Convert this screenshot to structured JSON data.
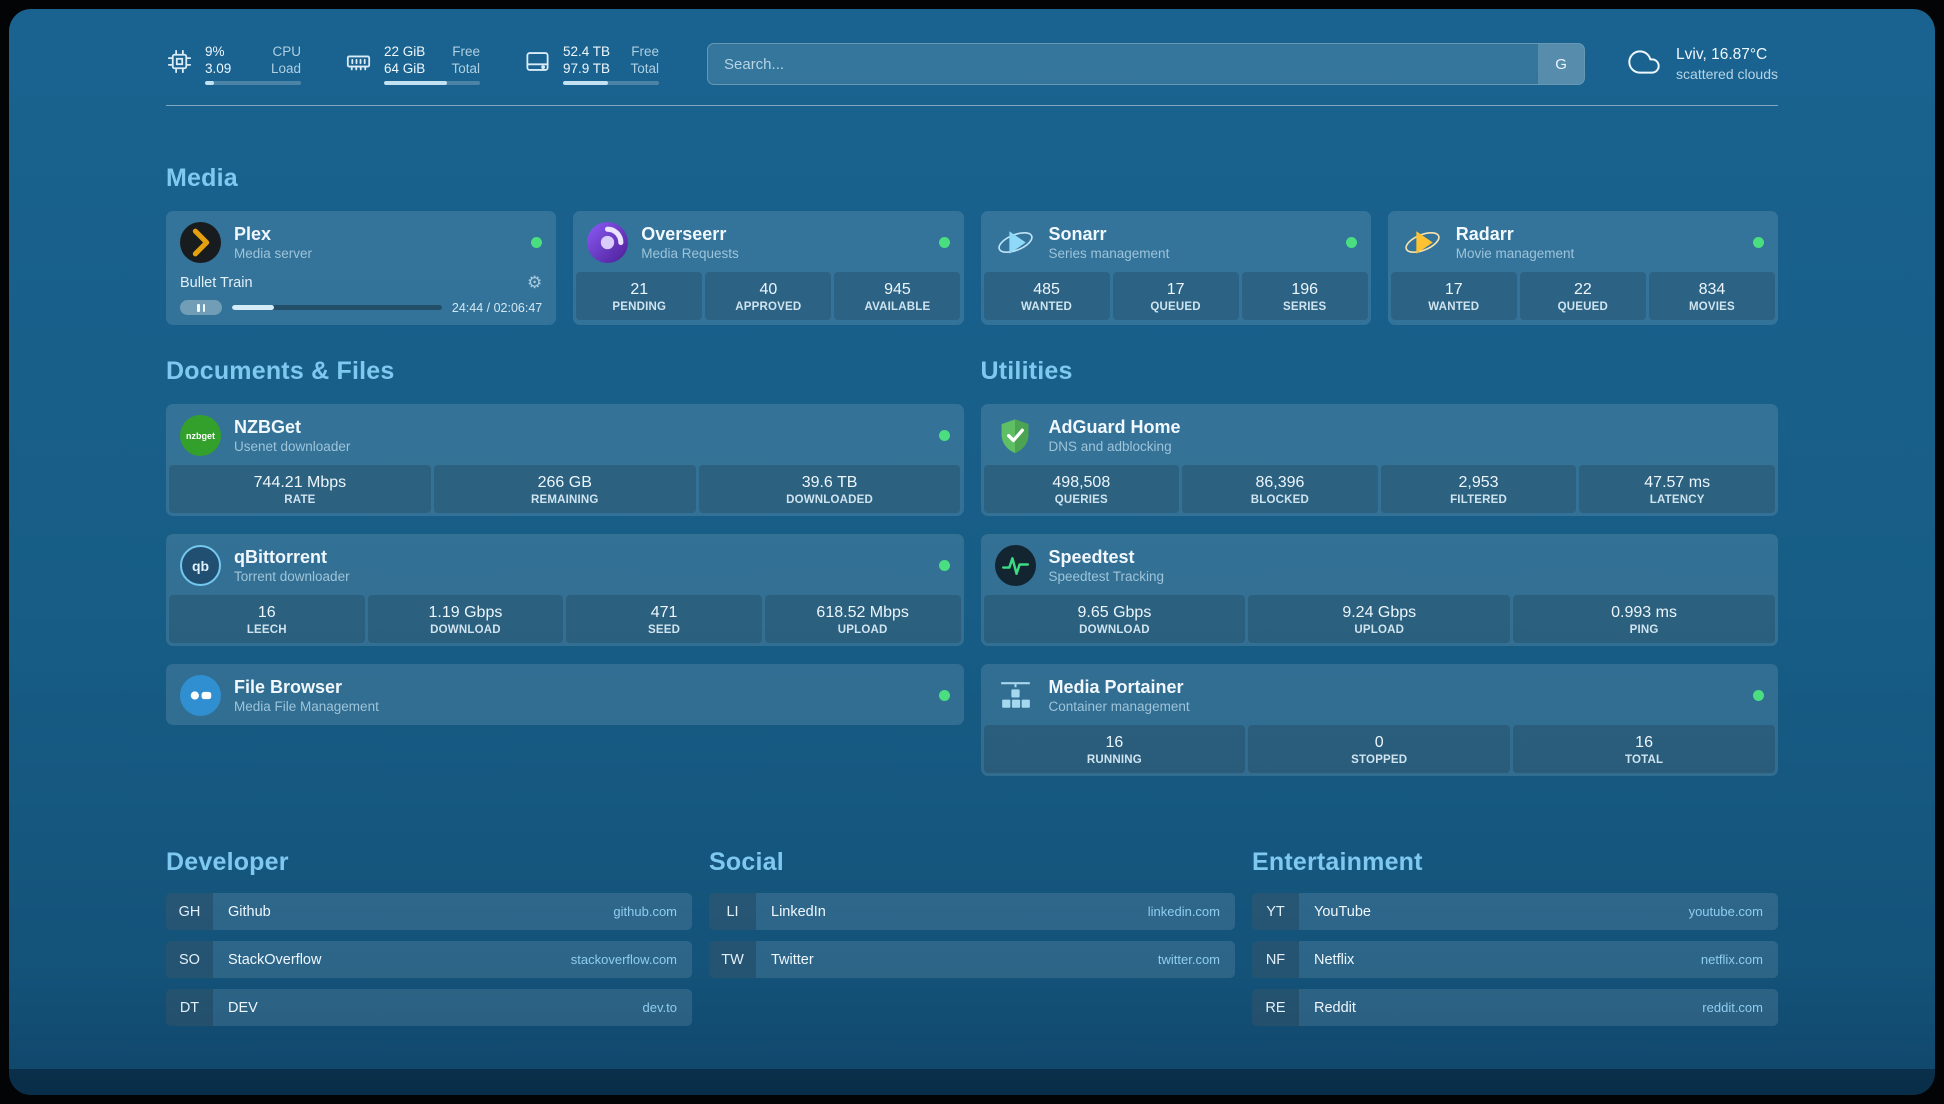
{
  "header": {
    "cpu": {
      "rows": [
        {
          "value": "9%",
          "label": "CPU"
        },
        {
          "value": "3.09",
          "label": "Load"
        }
      ],
      "percent": 9
    },
    "memory": {
      "rows": [
        {
          "value": "22 GiB",
          "label": "Free"
        },
        {
          "value": "64 GiB",
          "label": "Total"
        }
      ],
      "percent": 66
    },
    "disk": {
      "rows": [
        {
          "value": "52.4 TB",
          "label": "Free"
        },
        {
          "value": "97.9 TB",
          "label": "Total"
        }
      ],
      "percent": 47
    },
    "search": {
      "placeholder": "Search...",
      "provider": "G"
    },
    "weather": {
      "location": "Lviv, 16.87°C",
      "condition": "scattered clouds"
    }
  },
  "sections": {
    "media": "Media",
    "documents": "Documents & Files",
    "utilities": "Utilities",
    "developer": "Developer",
    "social": "Social",
    "entertainment": "Entertainment"
  },
  "services": {
    "plex": {
      "name": "Plex",
      "desc": "Media server",
      "now_playing": "Bullet Train",
      "time": "24:44 / 02:06:47",
      "progress_percent": 20
    },
    "overseerr": {
      "name": "Overseerr",
      "desc": "Media Requests",
      "stats": [
        {
          "value": "21",
          "label": "PENDING"
        },
        {
          "value": "40",
          "label": "APPROVED"
        },
        {
          "value": "945",
          "label": "AVAILABLE"
        }
      ]
    },
    "sonarr": {
      "name": "Sonarr",
      "desc": "Series management",
      "stats": [
        {
          "value": "485",
          "label": "WANTED"
        },
        {
          "value": "17",
          "label": "QUEUED"
        },
        {
          "value": "196",
          "label": "SERIES"
        }
      ]
    },
    "radarr": {
      "name": "Radarr",
      "desc": "Movie management",
      "stats": [
        {
          "value": "17",
          "label": "WANTED"
        },
        {
          "value": "22",
          "label": "QUEUED"
        },
        {
          "value": "834",
          "label": "MOVIES"
        }
      ]
    },
    "nzbget": {
      "name": "NZBGet",
      "desc": "Usenet downloader",
      "stats": [
        {
          "value": "744.21 Mbps",
          "label": "RATE"
        },
        {
          "value": "266 GB",
          "label": "REMAINING"
        },
        {
          "value": "39.6 TB",
          "label": "DOWNLOADED"
        }
      ]
    },
    "qbittorrent": {
      "name": "qBittorrent",
      "desc": "Torrent downloader",
      "stats": [
        {
          "value": "16",
          "label": "LEECH"
        },
        {
          "value": "1.19 Gbps",
          "label": "DOWNLOAD"
        },
        {
          "value": "471",
          "label": "SEED"
        },
        {
          "value": "618.52 Mbps",
          "label": "UPLOAD"
        }
      ]
    },
    "filebrowser": {
      "name": "File Browser",
      "desc": "Media File Management"
    },
    "adguard": {
      "name": "AdGuard Home",
      "desc": "DNS and adblocking",
      "stats": [
        {
          "value": "498,508",
          "label": "QUERIES"
        },
        {
          "value": "86,396",
          "label": "BLOCKED"
        },
        {
          "value": "2,953",
          "label": "FILTERED"
        },
        {
          "value": "47.57 ms",
          "label": "LATENCY"
        }
      ]
    },
    "speedtest": {
      "name": "Speedtest",
      "desc": "Speedtest Tracking",
      "stats": [
        {
          "value": "9.65 Gbps",
          "label": "DOWNLOAD"
        },
        {
          "value": "9.24 Gbps",
          "label": "UPLOAD"
        },
        {
          "value": "0.993 ms",
          "label": "PING"
        }
      ]
    },
    "portainer": {
      "name": "Media Portainer",
      "desc": "Container management",
      "stats": [
        {
          "value": "16",
          "label": "RUNNING"
        },
        {
          "value": "0",
          "label": "STOPPED"
        },
        {
          "value": "16",
          "label": "TOTAL"
        }
      ]
    }
  },
  "icons": {
    "nzbget_text": "nzbget",
    "qbittorrent_text": "qb"
  },
  "bookmarks": {
    "developer": [
      {
        "abbr": "GH",
        "name": "Github",
        "url": "github.com"
      },
      {
        "abbr": "SO",
        "name": "StackOverflow",
        "url": "stackoverflow.com"
      },
      {
        "abbr": "DT",
        "name": "DEV",
        "url": "dev.to"
      }
    ],
    "social": [
      {
        "abbr": "LI",
        "name": "LinkedIn",
        "url": "linkedin.com"
      },
      {
        "abbr": "TW",
        "name": "Twitter",
        "url": "twitter.com"
      }
    ],
    "entertainment": [
      {
        "abbr": "YT",
        "name": "YouTube",
        "url": "youtube.com"
      },
      {
        "abbr": "NF",
        "name": "Netflix",
        "url": "netflix.com"
      },
      {
        "abbr": "RE",
        "name": "Reddit",
        "url": "reddit.com"
      }
    ]
  },
  "colors": {
    "background": "#175d86",
    "accent": "#7fc9f0",
    "status_online": "#4ade80"
  }
}
